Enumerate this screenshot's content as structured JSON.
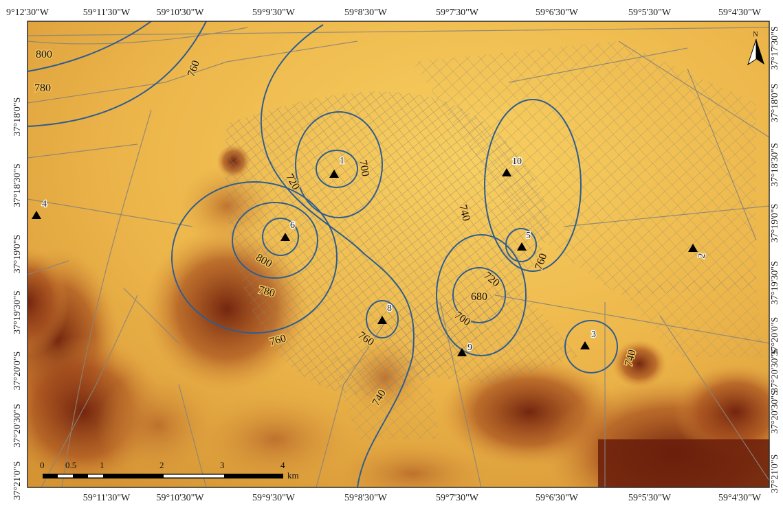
{
  "map": {
    "north_arrow_label": "N",
    "colors": {
      "frame": "#2b2b2b",
      "contour": "#2f5d8f",
      "streets": "#8a8478",
      "station": "#000000",
      "dem_light": "#f6c95c",
      "dem_mid": "#d99a3a",
      "dem_dark": "#7a2a10"
    },
    "top_ticks": [
      "9°12'30\"W",
      "59°11'30\"W",
      "59°10'30\"W",
      "59°9'30\"W",
      "59°8'30\"W",
      "59°7'30\"W",
      "59°6'30\"W",
      "59°5'30\"W",
      "59°4'30\"W"
    ],
    "bottom_ticks": [
      "59°11'30\"W",
      "59°10'30\"W",
      "59°9'30\"W",
      "59°8'30\"W",
      "59°7'30\"W",
      "59°6'30\"W",
      "59°5'30\"W",
      "59°4'30\"W"
    ],
    "left_ticks": [
      "37°18'0\"S",
      "37°18'30\"S",
      "37°19'0\"S",
      "37°19'30\"S",
      "37°20'0\"S",
      "37°20'30\"S",
      "37°21'0\"S"
    ],
    "right_ticks": [
      "37°17'30\"S",
      "37°18'0\"S",
      "37°18'30\"S",
      "37°19'0\"S",
      "37°19'30\"S",
      "37°20'0\"S",
      "37°20'30\"S",
      "37°20'30\"S",
      "37°21'0\"S"
    ],
    "contour_labels": [
      "800",
      "780",
      "760",
      "720",
      "700",
      "800",
      "780",
      "760",
      "760",
      "740",
      "720",
      "680",
      "700",
      "740",
      "760",
      "740",
      "740"
    ],
    "stations": [
      "1",
      "2",
      "3",
      "4",
      "5",
      "6",
      "8",
      "9",
      "10"
    ],
    "scale_bar": {
      "labels": [
        "0",
        "0.5",
        "1",
        "2",
        "3",
        "4"
      ],
      "unit": "km"
    }
  }
}
